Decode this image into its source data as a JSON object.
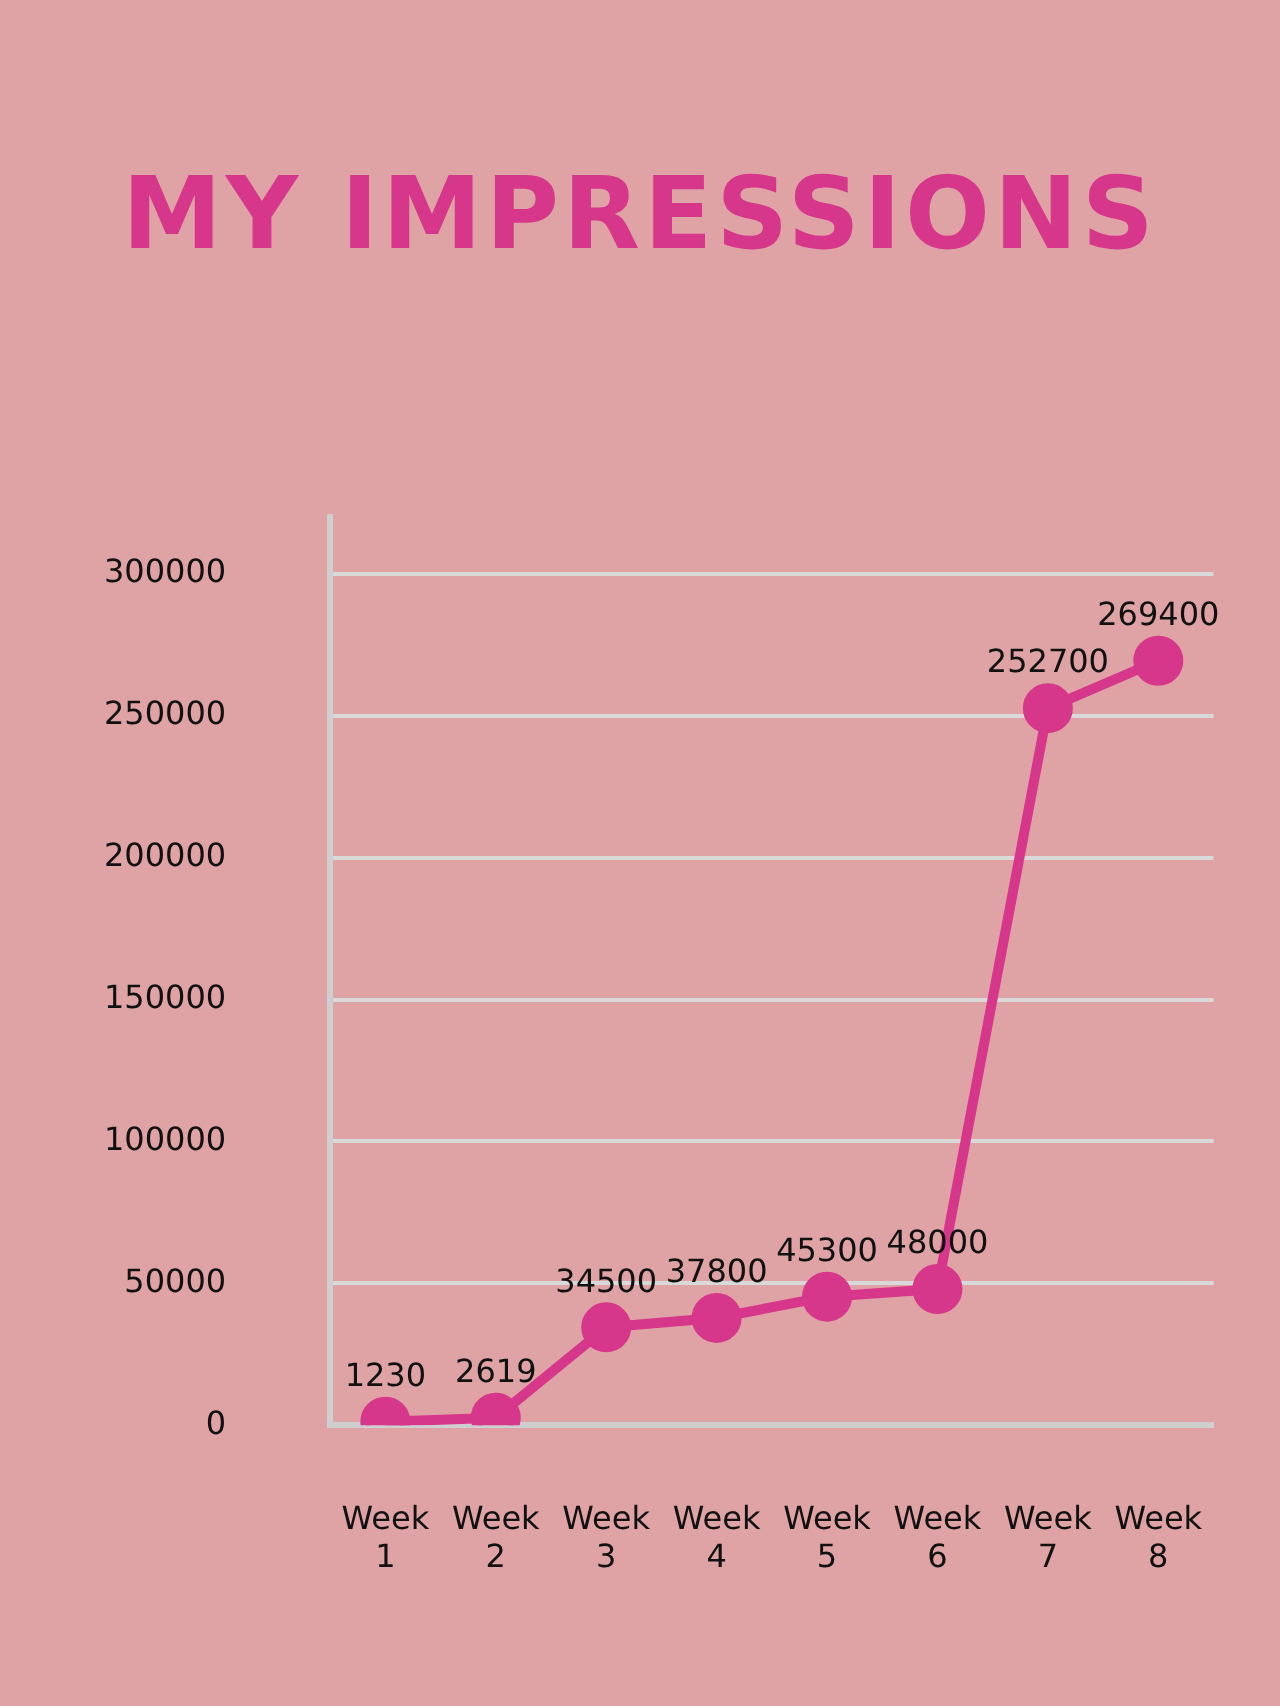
{
  "chart_data": {
    "type": "line",
    "title": "MY IMPRESSIONS",
    "categories": [
      "Week 1",
      "Week 2",
      "Week 3",
      "Week 4",
      "Week 5",
      "Week 6",
      "Week 7",
      "Week 8"
    ],
    "series": [
      {
        "color": "#d6378a",
        "values": [
          1230,
          2619,
          34500,
          37800,
          45300,
          48000,
          252700,
          269400
        ]
      }
    ],
    "ylim": [
      0,
      320000
    ],
    "yticks": [
      0,
      50000,
      100000,
      150000,
      200000,
      250000,
      300000
    ],
    "grid": "y",
    "legend": false,
    "marker": "circle",
    "line_style": "solid",
    "data_labels": true
  }
}
